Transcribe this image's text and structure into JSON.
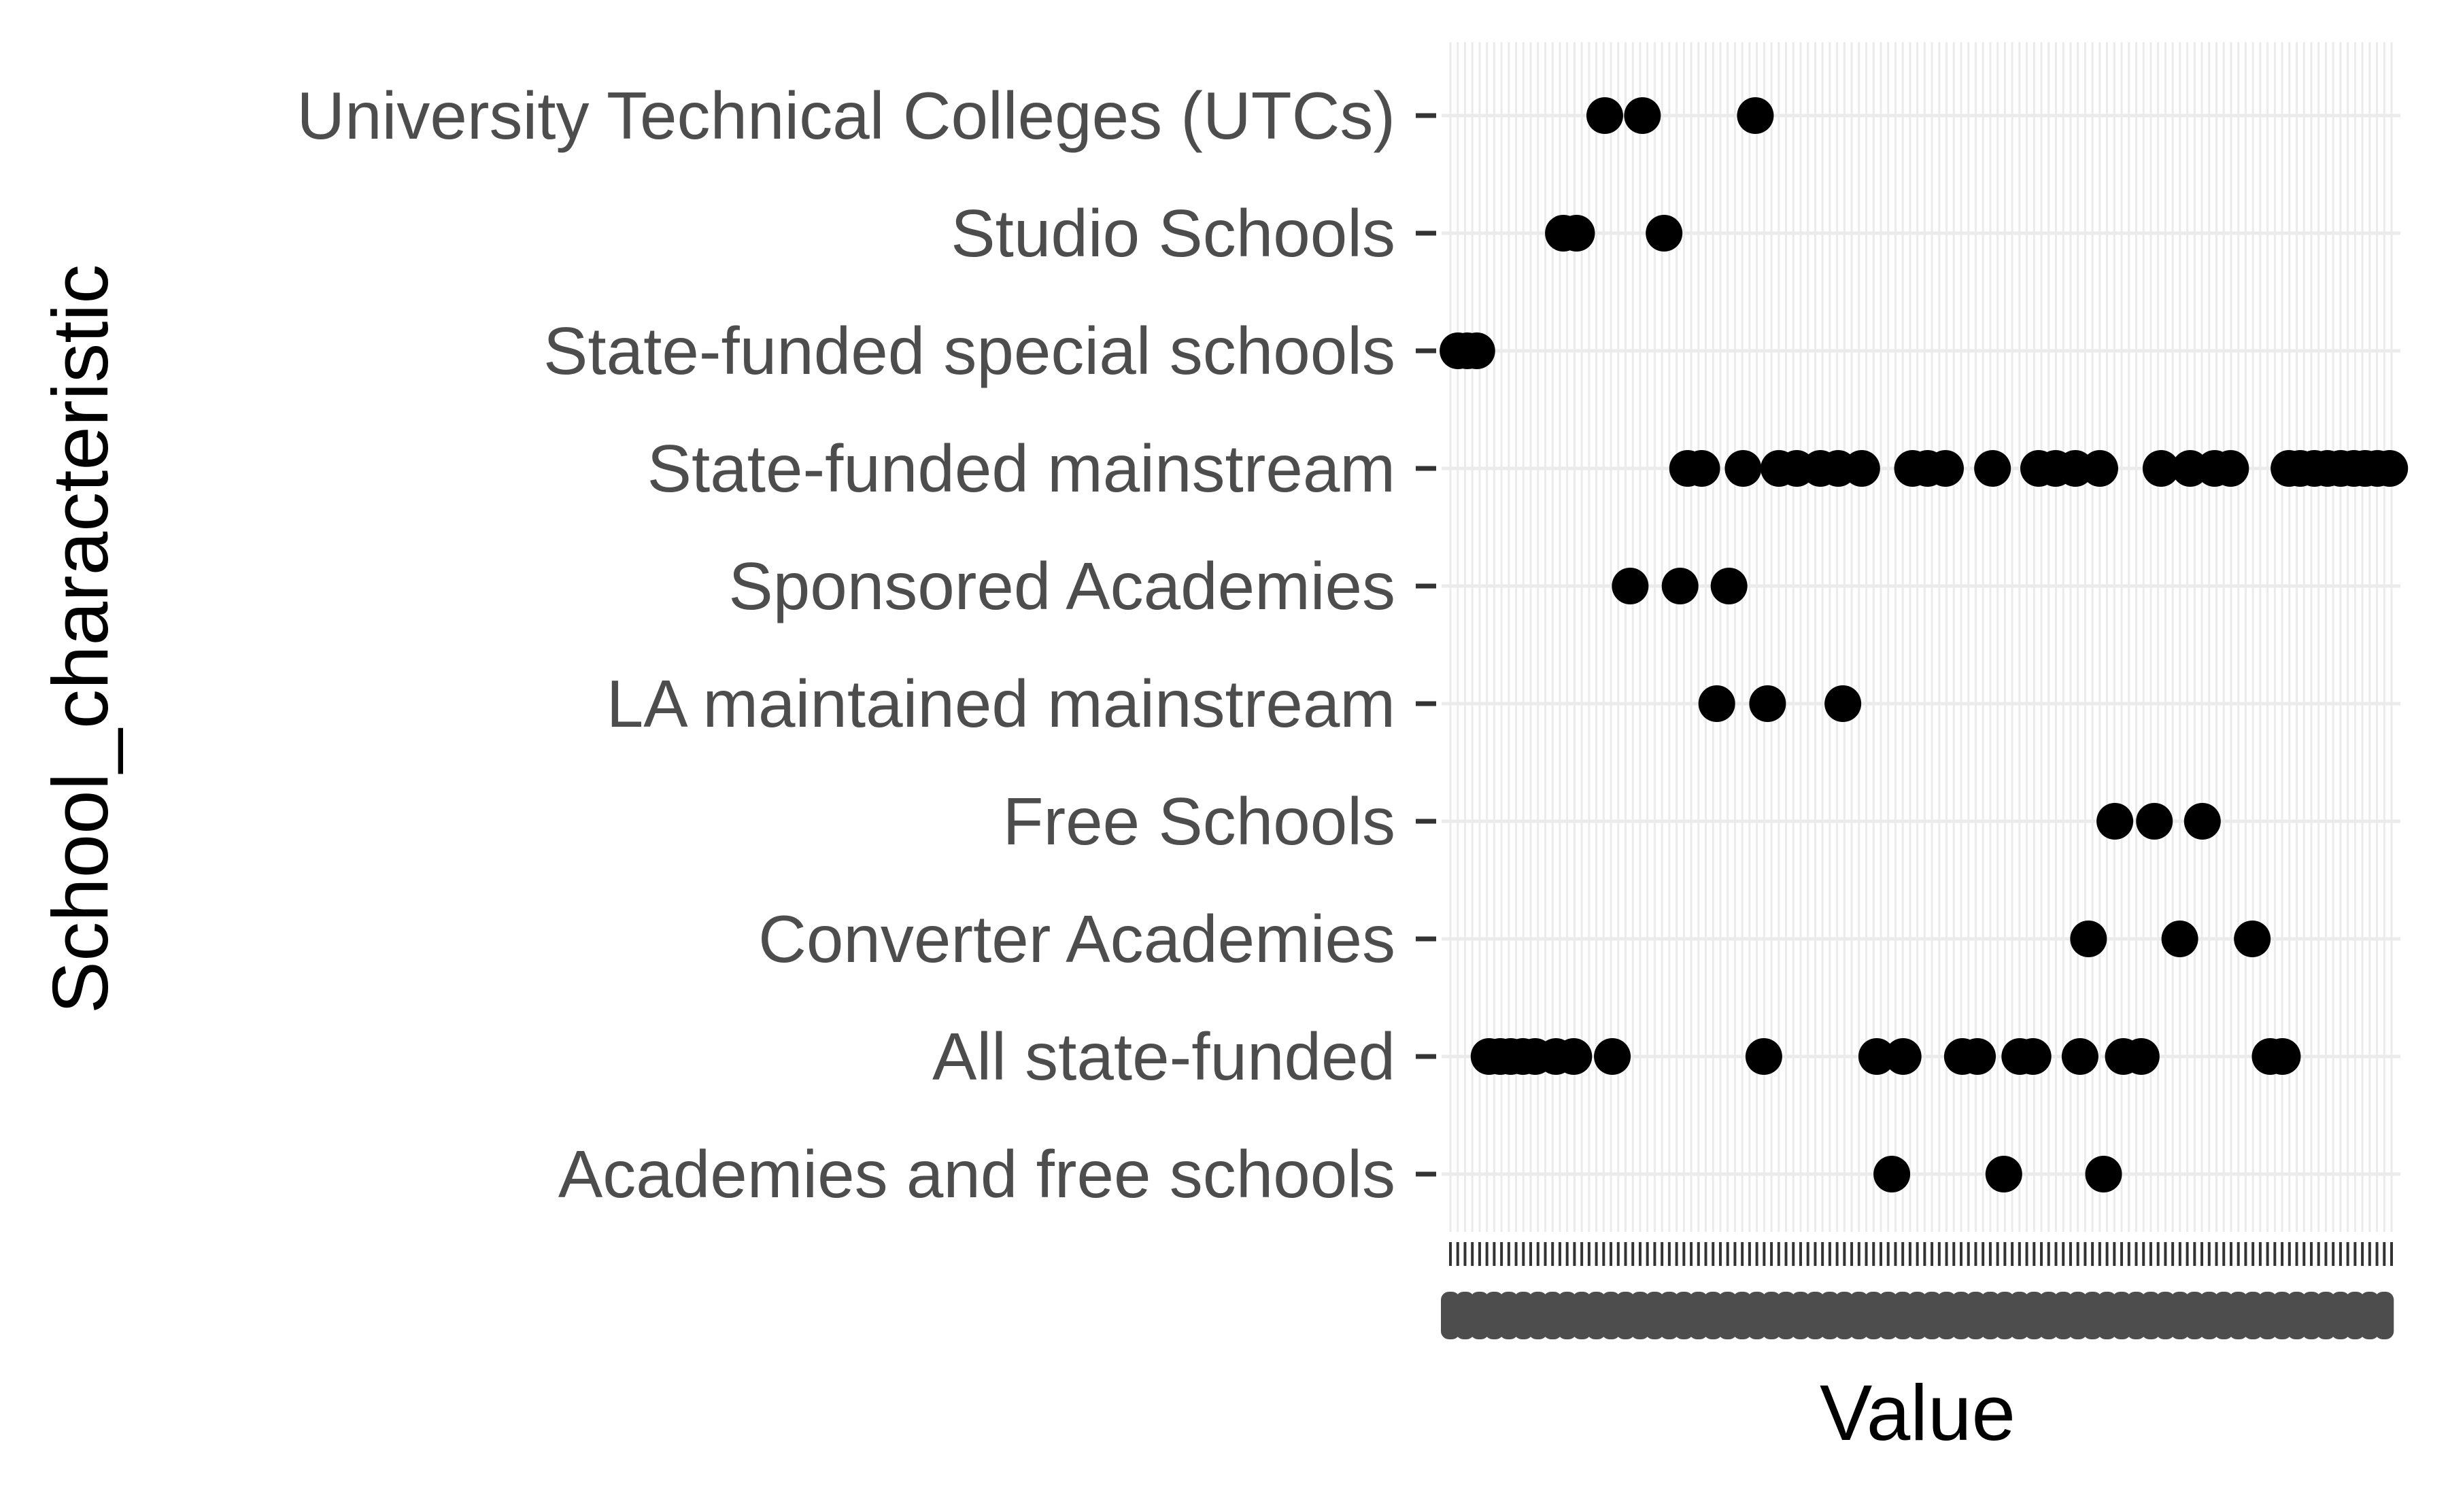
{
  "chart_data": {
    "type": "scatter",
    "title": "",
    "xlabel": "Value",
    "ylabel": "School_characteristic",
    "x_is_categorical": true,
    "x_tick_labels_legible": false,
    "xlim": [
      0,
      1
    ],
    "grid": true,
    "legend": "none",
    "colors": {
      "point": "#000000",
      "panel": "#ffffff",
      "grid": "#ebebeb",
      "text": "#4d4d4d"
    },
    "categories": [
      "Academies and free schools",
      "All state-funded",
      "Converter Academies",
      "Free Schools",
      "LA maintained mainstream",
      "Sponsored Academies",
      "State-funded mainstream",
      "State-funded special schools",
      "Studio Schools",
      "University Technical Colleges (UTCs)"
    ],
    "series": [
      {
        "category": "Academies and free schools",
        "x": [
          0.469,
          0.588,
          0.694
        ]
      },
      {
        "category": "All state-funded",
        "x": [
          0.041,
          0.053,
          0.064,
          0.077,
          0.09,
          0.112,
          0.131,
          0.172,
          0.333,
          0.453,
          0.481,
          0.544,
          0.56,
          0.605,
          0.619,
          0.669,
          0.715,
          0.734,
          0.871,
          0.884
        ]
      },
      {
        "category": "Converter Academies",
        "x": [
          0.678,
          0.775,
          0.852
        ]
      },
      {
        "category": "Free Schools",
        "x": [
          0.706,
          0.748,
          0.799
        ]
      },
      {
        "category": "LA maintained mainstream",
        "x": [
          0.283,
          0.337,
          0.417
        ]
      },
      {
        "category": "Sponsored Academies",
        "x": [
          0.191,
          0.244,
          0.296
        ]
      },
      {
        "category": "State-funded mainstream",
        "x": [
          0.252,
          0.267,
          0.311,
          0.349,
          0.368,
          0.393,
          0.412,
          0.437,
          0.491,
          0.507,
          0.526,
          0.576,
          0.625,
          0.643,
          0.664,
          0.69,
          0.755,
          0.786,
          0.812,
          0.829,
          0.891,
          0.903,
          0.918,
          0.932,
          0.946,
          0.96,
          0.972,
          0.985,
          0.998
        ]
      },
      {
        "category": "State-funded special schools",
        "x": [
          0.008,
          0.018,
          0.028
        ]
      },
      {
        "category": "Studio Schools",
        "x": [
          0.12,
          0.134,
          0.227
        ]
      },
      {
        "category": "University Technical Colleges (UTCs)",
        "x": [
          0.164,
          0.204,
          0.324
        ]
      }
    ]
  }
}
